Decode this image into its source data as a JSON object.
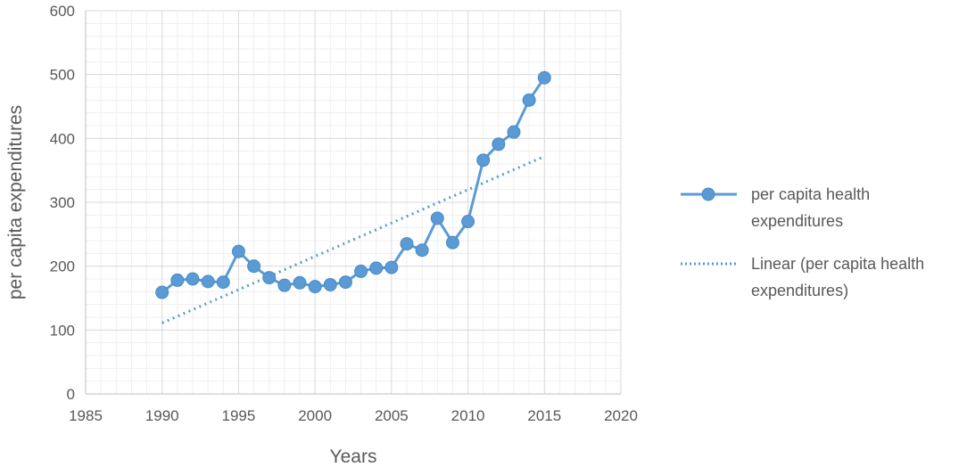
{
  "chart_data": {
    "type": "line",
    "title": "",
    "xlabel": "Years",
    "ylabel": "per capita expenditures",
    "xlim": [
      1985,
      2020
    ],
    "ylim": [
      0,
      600
    ],
    "xticks": [
      1985,
      1990,
      1995,
      2000,
      2005,
      2010,
      2015,
      2020
    ],
    "yticks": [
      0,
      100,
      200,
      300,
      400,
      500,
      600
    ],
    "grid": true,
    "legend_position": "right",
    "series": [
      {
        "name": "per capita health expenditures",
        "color": "#5b9bd5",
        "style": "line-with-markers",
        "x": [
          1990,
          1991,
          1992,
          1993,
          1994,
          1995,
          1996,
          1997,
          1998,
          1999,
          2000,
          2001,
          2002,
          2003,
          2004,
          2005,
          2006,
          2007,
          2008,
          2009,
          2010,
          2011,
          2012,
          2013,
          2014,
          2015
        ],
        "y": [
          159,
          178,
          180,
          176,
          175,
          223,
          200,
          182,
          170,
          174,
          168,
          171,
          175,
          192,
          197,
          198,
          235,
          225,
          275,
          237,
          270,
          366,
          391,
          410,
          460,
          495
        ]
      },
      {
        "name": "Linear (per capita health expenditures)",
        "color": "#5b9bd5",
        "style": "dotted-trendline",
        "x": [
          1990,
          2015
        ],
        "y": [
          111,
          372
        ]
      }
    ],
    "legend": {
      "entries": [
        {
          "line1": "per capita health",
          "line2": "expenditures"
        },
        {
          "line1": "Linear (per capita health",
          "line2": "expenditures)"
        }
      ]
    }
  }
}
